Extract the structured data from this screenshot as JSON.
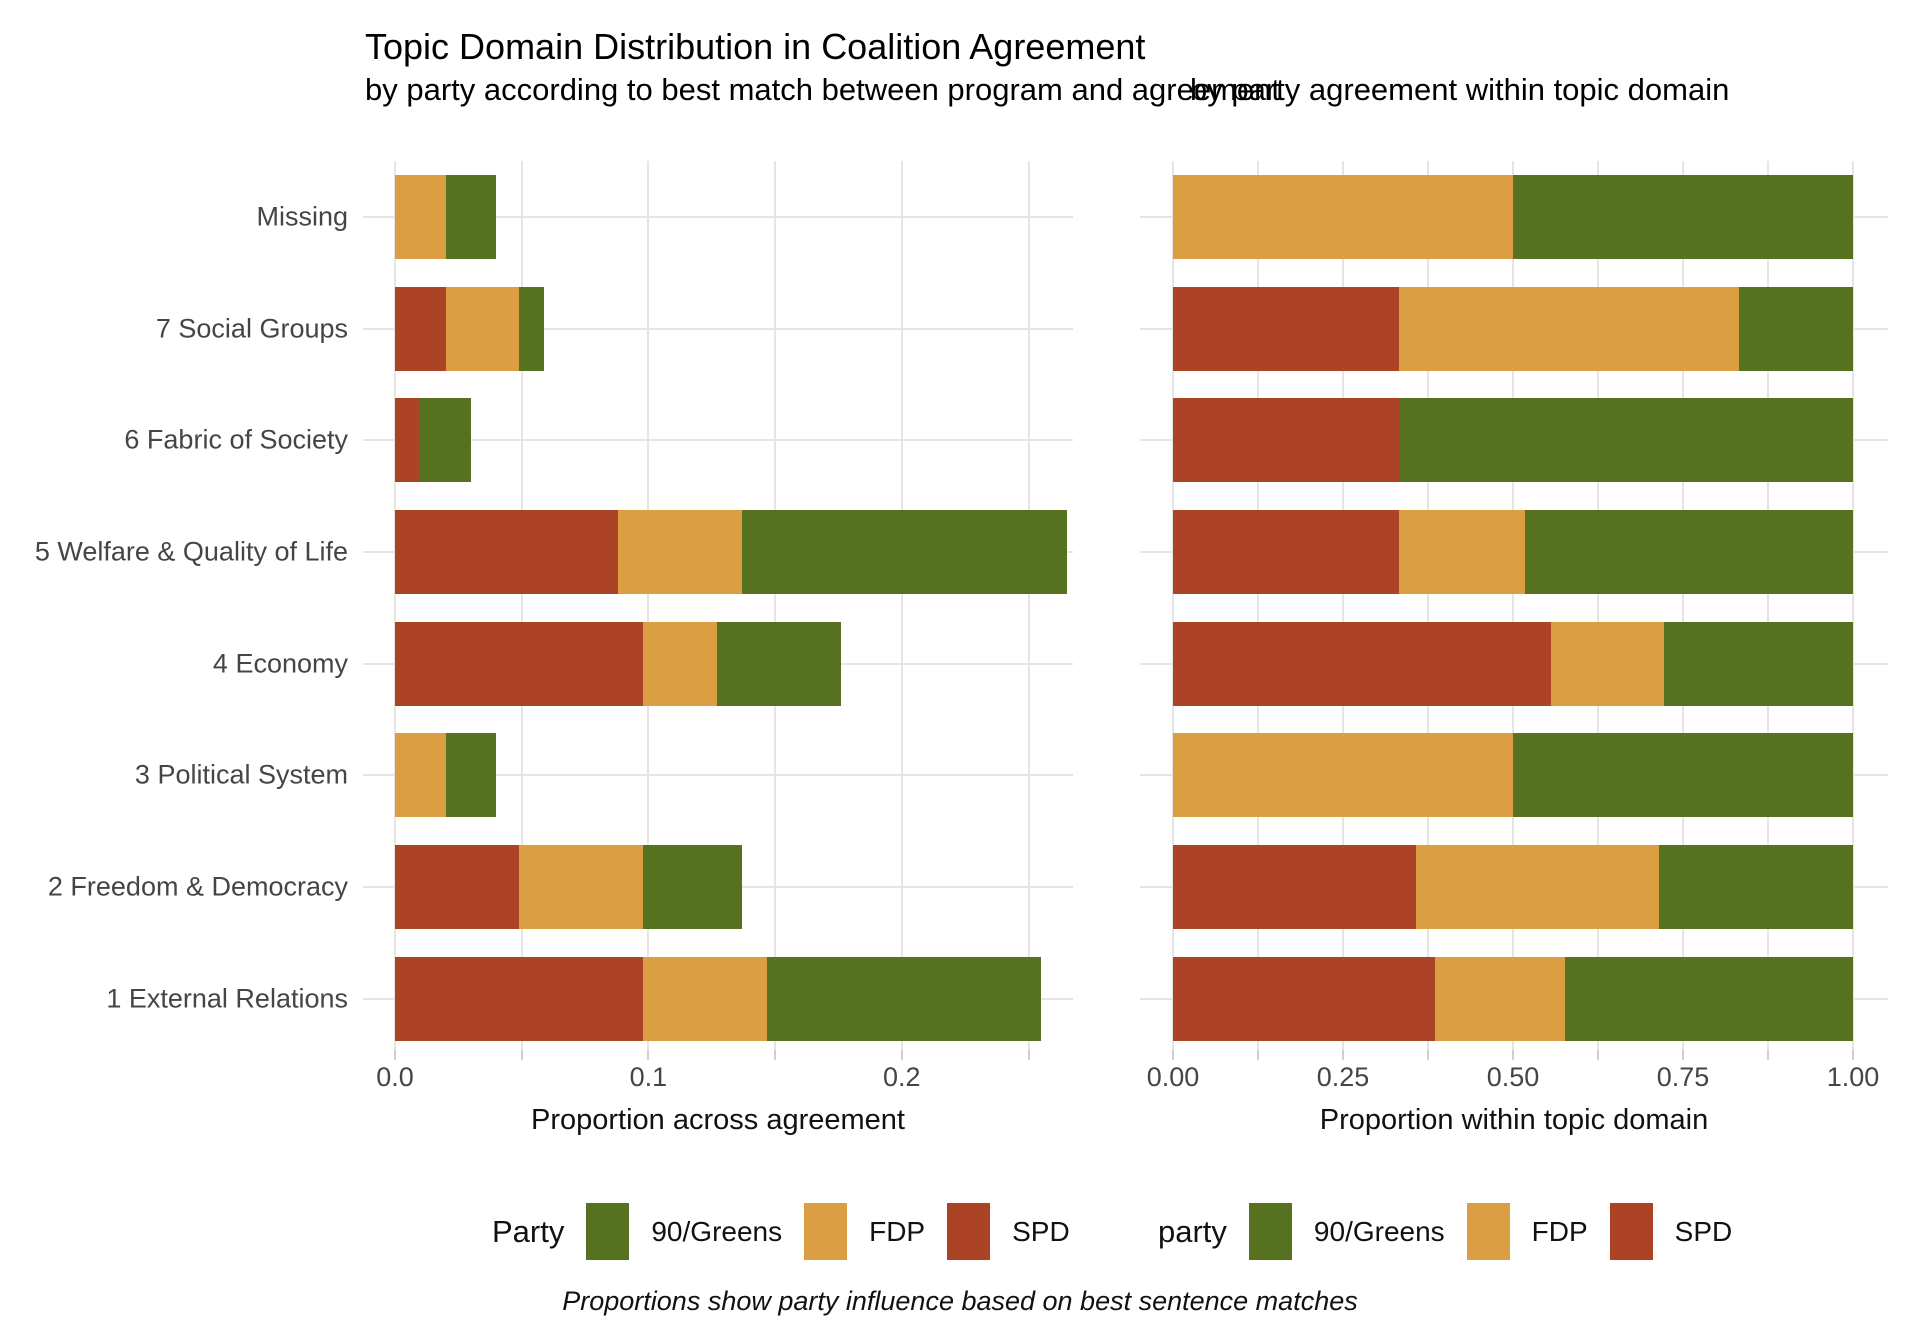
{
  "title": "Topic Domain Distribution in Coalition Agreement",
  "subtitle_left": "by party according to best match between program and agreement",
  "subtitle_right": "by party agreement within topic domain",
  "caption": "Proportions show party influence based on best sentence matches",
  "colors": {
    "greens": "#567120",
    "fdp": "#DC9E42",
    "spd": "#AC4327",
    "gridline": "#e5e5e5",
    "tick": "#cfcfcf",
    "axis_text": "#454545",
    "title_text": "#000000"
  },
  "legends": [
    {
      "title": "Party",
      "entries": [
        {
          "label": "90/Greens",
          "color_key": "greens"
        },
        {
          "label": "FDP",
          "color_key": "fdp"
        },
        {
          "label": "SPD",
          "color_key": "spd"
        }
      ]
    },
    {
      "title": "party",
      "entries": [
        {
          "label": "90/Greens",
          "color_key": "greens"
        },
        {
          "label": "FDP",
          "color_key": "fdp"
        },
        {
          "label": "SPD",
          "color_key": "spd"
        }
      ]
    }
  ],
  "chart_data": [
    {
      "type": "bar",
      "orientation": "horizontal",
      "stacked": true,
      "xlabel": "Proportion across agreement",
      "xlim": [
        0,
        0.28
      ],
      "x_grid_step": 0.05,
      "x_grid_max": 0.25,
      "x_tick_labels": [
        {
          "v": 0.0,
          "label": "0.0"
        },
        {
          "v": 0.1,
          "label": "0.1"
        },
        {
          "v": 0.2,
          "label": "0.2"
        }
      ],
      "categories": [
        "Missing",
        "7 Social Groups",
        "6 Fabric of Society",
        "5 Welfare & Quality of Life",
        "4 Economy",
        "3 Political System",
        "2 Freedom & Democracy",
        "1 External Relations"
      ],
      "series": [
        {
          "name": "SPD",
          "color_key": "spd",
          "values": [
            0.0,
            0.02,
            0.01,
            0.088,
            0.098,
            0.0,
            0.049,
            0.098
          ]
        },
        {
          "name": "FDP",
          "color_key": "fdp",
          "values": [
            0.02,
            0.029,
            0.0,
            0.049,
            0.029,
            0.02,
            0.049,
            0.049
          ]
        },
        {
          "name": "90/Greens",
          "color_key": "greens",
          "values": [
            0.02,
            0.01,
            0.02,
            0.128,
            0.049,
            0.02,
            0.039,
            0.108
          ]
        }
      ]
    },
    {
      "type": "bar",
      "orientation": "horizontal",
      "stacked": true,
      "xlabel": "Proportion within topic domain",
      "xlim": [
        0,
        1.05
      ],
      "x_grid_step": 0.125,
      "x_grid_max": 1.0,
      "x_tick_labels": [
        {
          "v": 0.0,
          "label": "0.00"
        },
        {
          "v": 0.25,
          "label": "0.25"
        },
        {
          "v": 0.5,
          "label": "0.50"
        },
        {
          "v": 0.75,
          "label": "0.75"
        },
        {
          "v": 1.0,
          "label": "1.00"
        }
      ],
      "categories": [
        "Missing",
        "7 Social Groups",
        "6 Fabric of Society",
        "5 Welfare & Quality of Life",
        "4 Economy",
        "3 Political System",
        "2 Freedom & Democracy",
        "1 External Relations"
      ],
      "series": [
        {
          "name": "SPD",
          "color_key": "spd",
          "values": [
            0.0,
            0.333,
            0.333,
            0.333,
            0.556,
            0.0,
            0.357,
            0.385
          ]
        },
        {
          "name": "FDP",
          "color_key": "fdp",
          "values": [
            0.5,
            0.5,
            0.0,
            0.185,
            0.166,
            0.5,
            0.357,
            0.192
          ]
        },
        {
          "name": "90/Greens",
          "color_key": "greens",
          "values": [
            0.5,
            0.167,
            0.667,
            0.482,
            0.278,
            0.5,
            0.286,
            0.423
          ]
        }
      ]
    }
  ]
}
